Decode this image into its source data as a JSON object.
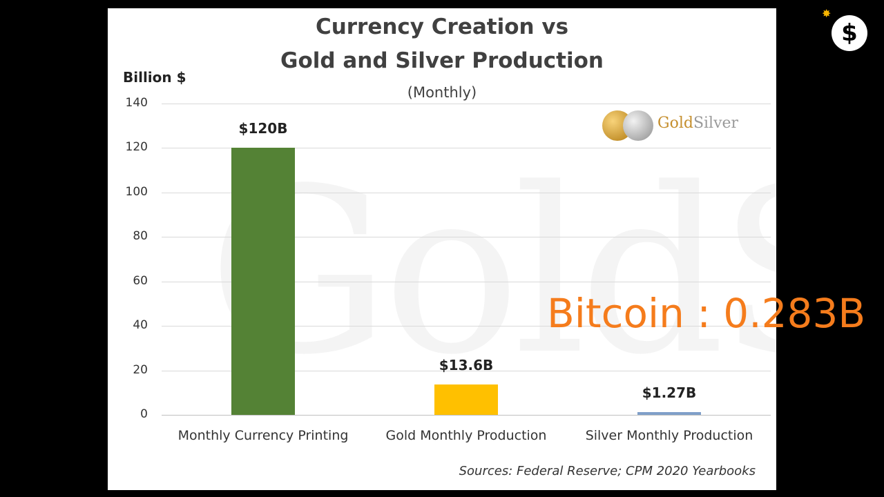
{
  "chart_data": {
    "type": "bar",
    "title": "Currency Creation vs",
    "title_line2": "Gold and Silver Production",
    "subtitle": "(Monthly)",
    "ylabel": "Billion $",
    "ylim": [
      0,
      140
    ],
    "yticks": [
      0,
      20,
      40,
      60,
      80,
      100,
      120,
      140
    ],
    "grid": true,
    "categories": [
      "Monthly Currency Printing",
      "Gold Monthly Production",
      "Silver Monthly Production"
    ],
    "values": [
      120,
      13.6,
      1.27
    ],
    "value_labels": [
      "$120B",
      "$13.6B",
      "$1.27B"
    ],
    "colors": [
      "#548235",
      "#ffc000",
      "#7f9fc9"
    ],
    "source": "Sources: Federal Reserve; CPM 2020 Yearbooks"
  },
  "logo": {
    "part1": "Gold",
    "part2": "Silver"
  },
  "watermark": "GoldSilver",
  "overlay_text": "Bitcoin : 0.283B",
  "channel_icon": {
    "name": "dollar-bomb-icon",
    "glyph": "$"
  }
}
